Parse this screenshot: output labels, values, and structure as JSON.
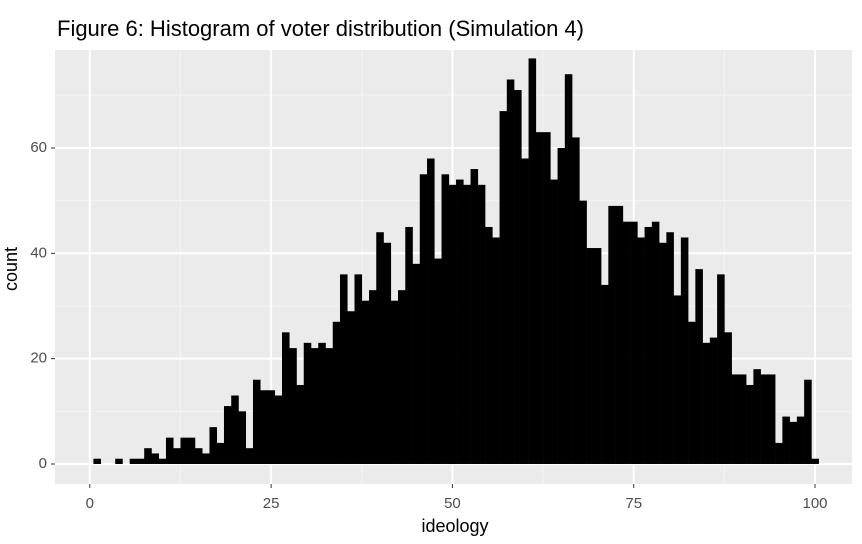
{
  "chart_data": {
    "type": "histogram",
    "title": "Figure 6: Histogram of voter distribution (Simulation 4)",
    "x_label": "ideology",
    "y_label": "count",
    "bins": [
      -0.5,
      0.5,
      1.5,
      2.5,
      3.5,
      4.5,
      5.5,
      6.5,
      7.5,
      8.5,
      9.5,
      10.5,
      11.5,
      12.5,
      13.5,
      14.5,
      15.5,
      16.5,
      17.5,
      18.5,
      19.5,
      20.5,
      21.5,
      22.5,
      23.5,
      24.5,
      25.5,
      26.5,
      27.5,
      28.5,
      29.5,
      30.5,
      31.5,
      32.5,
      33.5,
      34.5,
      35.5,
      36.5,
      37.5,
      38.5,
      39.5,
      40.5,
      41.5,
      42.5,
      43.5,
      44.5,
      45.5,
      46.5,
      47.5,
      48.5,
      49.5,
      50.5,
      51.5,
      52.5,
      53.5,
      54.5,
      55.5,
      56.5,
      57.5,
      58.5,
      59.5,
      60.5,
      61.5,
      62.5,
      63.5,
      64.5,
      65.5,
      66.5,
      67.5,
      68.5,
      69.5,
      70.5,
      71.5,
      72.5,
      73.5,
      74.5,
      75.5,
      76.5,
      77.5,
      78.5,
      79.5,
      80.5,
      81.5,
      82.5,
      83.5,
      84.5,
      85.5,
      86.5,
      87.5,
      88.5,
      89.5,
      90.5,
      91.5,
      92.5,
      93.5,
      94.5,
      95.5,
      96.5,
      97.5,
      98.5,
      99.5,
      100.5
    ],
    "values": [
      0,
      1,
      0,
      0,
      1,
      0,
      1,
      1,
      3,
      2,
      1,
      5,
      3,
      5,
      5,
      3,
      2,
      7,
      4,
      11,
      13,
      10,
      3,
      16,
      14,
      14,
      13,
      25,
      22,
      15,
      23,
      22,
      23,
      22,
      27,
      36,
      29,
      36,
      31,
      33,
      44,
      42,
      31,
      33,
      45,
      38,
      55,
      58,
      39,
      55,
      53,
      54,
      53,
      56,
      53,
      45,
      43,
      67,
      73,
      71,
      58,
      77,
      63,
      63,
      54,
      60,
      74,
      62,
      50,
      41,
      41,
      34,
      49,
      49,
      46,
      46,
      43,
      45,
      46,
      42,
      44,
      32,
      43,
      27,
      37,
      23,
      24,
      36,
      25,
      17,
      17,
      15,
      18,
      17,
      17,
      4,
      9,
      8,
      9,
      16,
      1
    ],
    "color": "#000000",
    "xlim": [
      -4.8,
      105.1
    ],
    "xticks": [
      0,
      25,
      50,
      75,
      100
    ],
    "ylim": [
      -3.8,
      78.6
    ],
    "yticks": [
      0,
      20,
      40,
      60
    ],
    "grid": true
  }
}
